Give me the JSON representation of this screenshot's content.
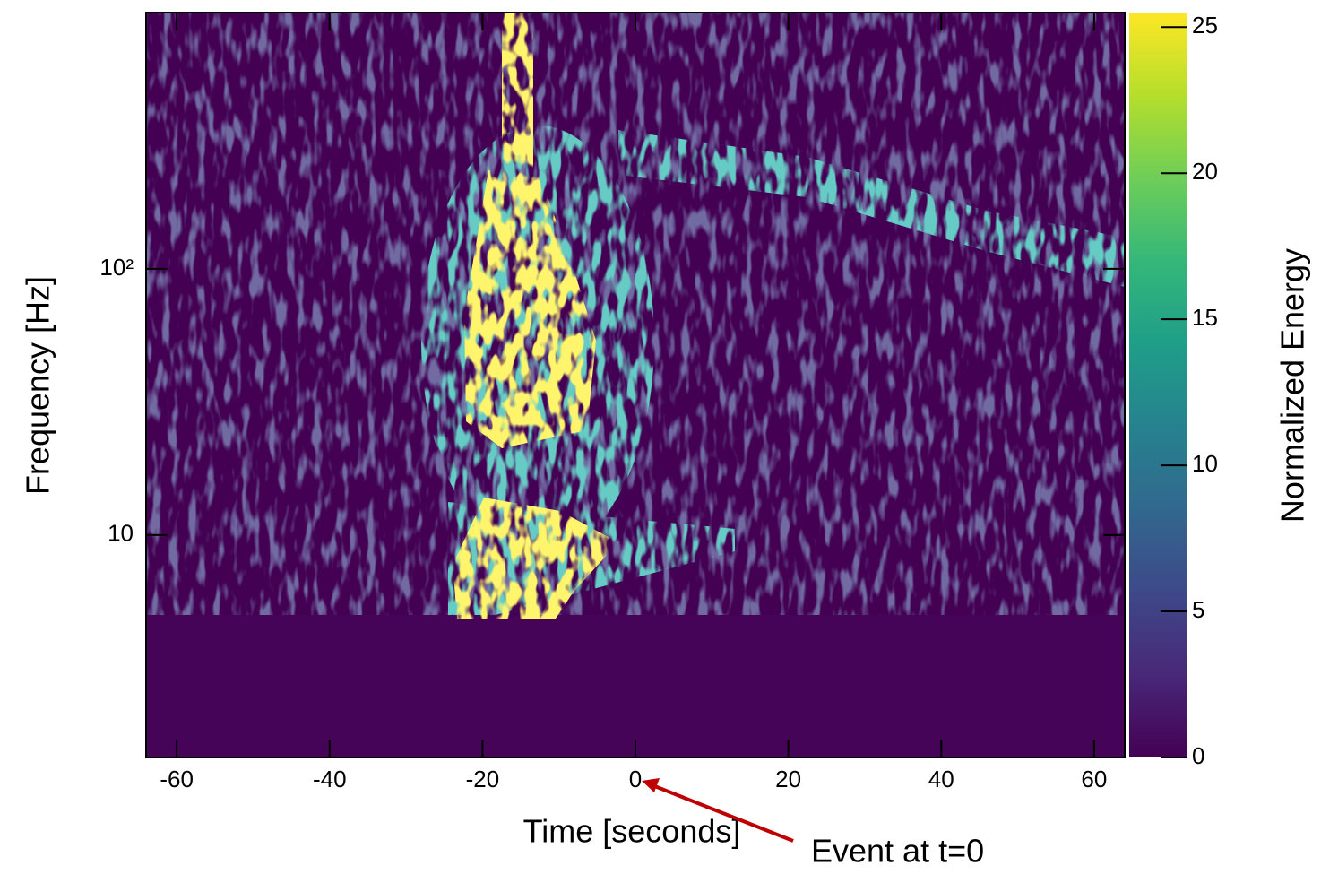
{
  "chart_data": {
    "type": "heatmap",
    "xlabel": "Time [seconds]",
    "ylabel": "Frequency [Hz]",
    "xlim": [
      -64,
      64
    ],
    "xticks": [
      -60,
      -40,
      -20,
      0,
      20,
      40,
      60
    ],
    "ylim": [
      1.46,
      918
    ],
    "yscale": "log",
    "yticks": [
      10,
      {
        "value": 100,
        "label": "10²"
      }
    ],
    "colorbar": {
      "label": "Normalized Energy",
      "lim": [
        0,
        25.5
      ],
      "ticks": [
        0,
        5,
        10,
        15,
        20,
        25
      ],
      "colormap": "viridis"
    },
    "annotation": {
      "text": "Event at t=0",
      "color": "#c00000"
    }
  }
}
